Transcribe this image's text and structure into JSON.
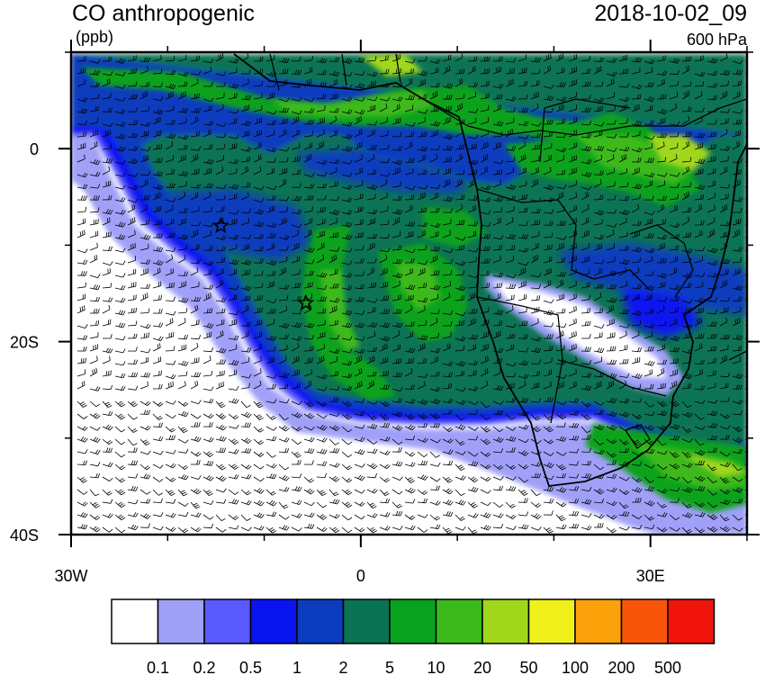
{
  "header": {
    "title": "CO anthropogenic",
    "units": "(ppb)",
    "datetime": "2018-10-02_09",
    "level": "600 hPa"
  },
  "chart_data": {
    "type": "heatmap",
    "variable": "CO anthropogenic",
    "units": "(ppb)",
    "lon_range": [
      -30,
      40
    ],
    "lat_range": [
      -40,
      10
    ],
    "x_ticks": [
      {
        "value": -30,
        "label": "30W"
      },
      {
        "value": 0,
        "label": "0"
      },
      {
        "value": 30,
        "label": "30E"
      }
    ],
    "y_ticks": [
      {
        "value": 0,
        "label": "0"
      },
      {
        "value": -20,
        "label": "20S"
      },
      {
        "value": -40,
        "label": "40S"
      }
    ],
    "colorbar": {
      "levels": [
        "0.1",
        "0.2",
        "0.5",
        "1",
        "2",
        "5",
        "10",
        "20",
        "50",
        "100",
        "200",
        "500"
      ],
      "colors": [
        "#ffffff",
        "#a0a0f8",
        "#5a5aff",
        "#0a14f0",
        "#0b3cbe",
        "#0a7354",
        "#08a21e",
        "#3cb91a",
        "#a0d71a",
        "#f0f01a",
        "#fca10a",
        "#f8550a",
        "#f0140a"
      ]
    },
    "markers": [
      {
        "type": "star",
        "lon": -14.5,
        "lat": -8
      },
      {
        "type": "star",
        "lon": -5.7,
        "lat": -16
      }
    ],
    "overlays": [
      "wind-barbs",
      "coastlines",
      "country-borders"
    ]
  }
}
